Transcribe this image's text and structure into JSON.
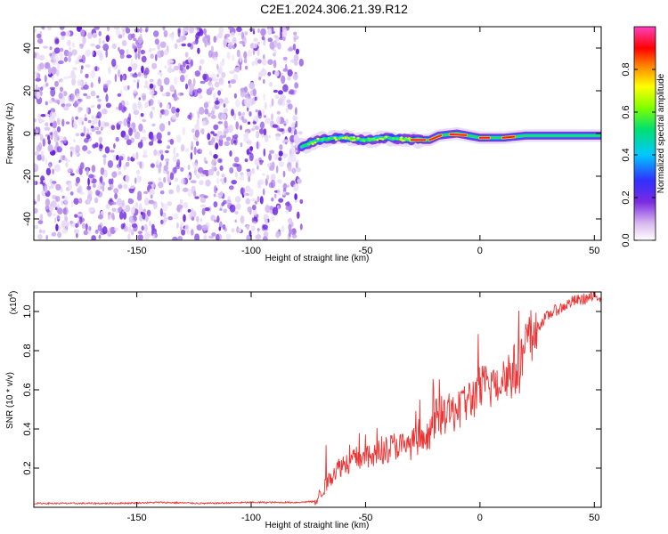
{
  "title": "C2E1.2024.306.21.39.R12",
  "chart_data": [
    {
      "type": "heatmap",
      "title": "C2E1.2024.306.21.39.R12",
      "xlabel": "Height of straight line (km)",
      "ylabel": "Frequency (Hz)",
      "xlim": [
        -195,
        53
      ],
      "ylim": [
        -50,
        50
      ],
      "xticks": [
        -150,
        -100,
        -50,
        0,
        50
      ],
      "yticks": [
        -40,
        -20,
        0,
        20,
        40
      ],
      "noise_region": [
        -195,
        -78
      ],
      "signal_track": [
        {
          "x": -78,
          "y": -6
        },
        {
          "x": -70,
          "y": -3
        },
        {
          "x": -60,
          "y": -2
        },
        {
          "x": -50,
          "y": -3
        },
        {
          "x": -40,
          "y": -2
        },
        {
          "x": -30,
          "y": -3
        },
        {
          "x": -22,
          "y": -3
        },
        {
          "x": -18,
          "y": -1
        },
        {
          "x": -10,
          "y": 0
        },
        {
          "x": 0,
          "y": -2
        },
        {
          "x": 10,
          "y": -2
        },
        {
          "x": 20,
          "y": -1
        },
        {
          "x": 30,
          "y": -1
        },
        {
          "x": 40,
          "y": -1
        },
        {
          "x": 53,
          "y": -1
        }
      ],
      "colorbar": {
        "label": "Normalized spectral amplitude",
        "range": [
          0,
          1
        ],
        "ticks": [
          "0.0",
          "0.2",
          "0.4",
          "0.6",
          "0.8"
        ]
      }
    },
    {
      "type": "line",
      "xlabel": "Height of straight line (km)",
      "ylabel": "SNR (10 * v/v)",
      "y_multiplier": "(x10",
      "y_multiplier_exp": "4",
      "xlim": [
        -195,
        53
      ],
      "ylim": [
        0,
        1.1
      ],
      "xticks": [
        -150,
        -100,
        -50,
        0,
        50
      ],
      "yticks": [
        "0.2",
        "0.4",
        "0.6",
        "0.8",
        "1.0"
      ],
      "series": [
        {
          "color": "#ee3333",
          "x": [
            -195,
            -180,
            -160,
            -140,
            -120,
            -100,
            -80,
            -72,
            -68,
            -64,
            -60,
            -56,
            -52,
            -48,
            -44,
            -40,
            -36,
            -32,
            -28,
            -24,
            -20,
            -16,
            -12,
            -8,
            -4,
            0,
            4,
            8,
            12,
            16,
            20,
            24,
            28,
            32,
            36,
            40,
            44,
            48,
            53
          ],
          "y": [
            0.02,
            0.02,
            0.02,
            0.025,
            0.02,
            0.025,
            0.025,
            0.03,
            0.1,
            0.18,
            0.22,
            0.24,
            0.26,
            0.25,
            0.28,
            0.3,
            0.32,
            0.3,
            0.34,
            0.32,
            0.45,
            0.47,
            0.48,
            0.52,
            0.55,
            0.6,
            0.62,
            0.65,
            0.68,
            0.7,
            0.8,
            0.9,
            0.96,
            1.0,
            1.02,
            1.05,
            1.06,
            1.07,
            1.08
          ]
        }
      ]
    }
  ]
}
